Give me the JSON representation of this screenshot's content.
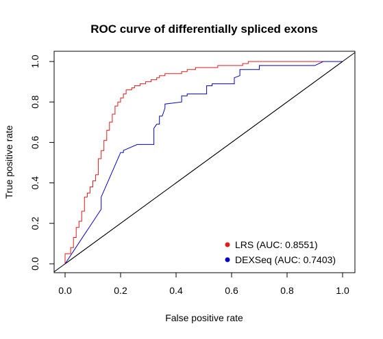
{
  "chart_data": {
    "type": "line",
    "title": "ROC curve of differentially spliced exons",
    "xlabel": "False positive rate",
    "ylabel": "True positive rate",
    "xlim": [
      0,
      1
    ],
    "ylim": [
      0,
      1
    ],
    "xticks": [
      "0.0",
      "0.2",
      "0.4",
      "0.6",
      "0.8",
      "1.0"
    ],
    "yticks": [
      "0.0",
      "0.2",
      "0.4",
      "0.6",
      "0.8",
      "1.0"
    ],
    "grid": false,
    "legend_position": "bottom-right",
    "reference_line": {
      "x": [
        0,
        1
      ],
      "y": [
        0,
        1
      ],
      "color": "#000000"
    },
    "series": [
      {
        "name": "LRS (AUC: 0.8551)",
        "color": "#e41a1c",
        "x": [
          0.0,
          0.0,
          0.02,
          0.02,
          0.03,
          0.03,
          0.04,
          0.04,
          0.05,
          0.05,
          0.06,
          0.06,
          0.07,
          0.07,
          0.08,
          0.08,
          0.09,
          0.09,
          0.1,
          0.1,
          0.11,
          0.11,
          0.12,
          0.12,
          0.13,
          0.13,
          0.14,
          0.14,
          0.15,
          0.15,
          0.16,
          0.16,
          0.17,
          0.17,
          0.18,
          0.18,
          0.19,
          0.19,
          0.2,
          0.2,
          0.21,
          0.21,
          0.22,
          0.22,
          0.24,
          0.24,
          0.25,
          0.25,
          0.27,
          0.27,
          0.29,
          0.29,
          0.31,
          0.31,
          0.33,
          0.33,
          0.34,
          0.34,
          0.36,
          0.36,
          0.42,
          0.42,
          0.44,
          0.44,
          0.47,
          0.47,
          0.55,
          0.55,
          0.64,
          0.64,
          0.66,
          0.66,
          1.0
        ],
        "y": [
          0.0,
          0.05,
          0.05,
          0.08,
          0.08,
          0.13,
          0.13,
          0.18,
          0.18,
          0.21,
          0.21,
          0.26,
          0.26,
          0.33,
          0.33,
          0.35,
          0.35,
          0.38,
          0.38,
          0.41,
          0.41,
          0.44,
          0.44,
          0.52,
          0.52,
          0.56,
          0.56,
          0.61,
          0.61,
          0.66,
          0.66,
          0.7,
          0.7,
          0.74,
          0.74,
          0.78,
          0.78,
          0.8,
          0.8,
          0.82,
          0.82,
          0.84,
          0.84,
          0.86,
          0.86,
          0.87,
          0.87,
          0.88,
          0.88,
          0.89,
          0.89,
          0.9,
          0.9,
          0.91,
          0.91,
          0.92,
          0.92,
          0.93,
          0.93,
          0.94,
          0.94,
          0.95,
          0.95,
          0.96,
          0.96,
          0.97,
          0.97,
          0.98,
          0.98,
          0.99,
          0.99,
          1.0,
          1.0
        ]
      },
      {
        "name": "DEXSeq (AUC: 0.7403)",
        "color": "#0000cc",
        "x": [
          0.0,
          0.13,
          0.13,
          0.2,
          0.21,
          0.21,
          0.26,
          0.32,
          0.32,
          0.33,
          0.34,
          0.34,
          0.35,
          0.36,
          0.36,
          0.42,
          0.42,
          0.44,
          0.44,
          0.51,
          0.51,
          0.53,
          0.53,
          0.61,
          0.61,
          0.63,
          0.63,
          0.7,
          0.7,
          0.9,
          0.93,
          1.0
        ],
        "y": [
          0.0,
          0.27,
          0.33,
          0.55,
          0.55,
          0.56,
          0.59,
          0.59,
          0.67,
          0.69,
          0.69,
          0.73,
          0.73,
          0.77,
          0.79,
          0.8,
          0.83,
          0.83,
          0.84,
          0.84,
          0.88,
          0.88,
          0.89,
          0.89,
          0.92,
          0.93,
          0.96,
          0.96,
          0.98,
          0.98,
          1.0,
          1.0
        ]
      }
    ]
  }
}
